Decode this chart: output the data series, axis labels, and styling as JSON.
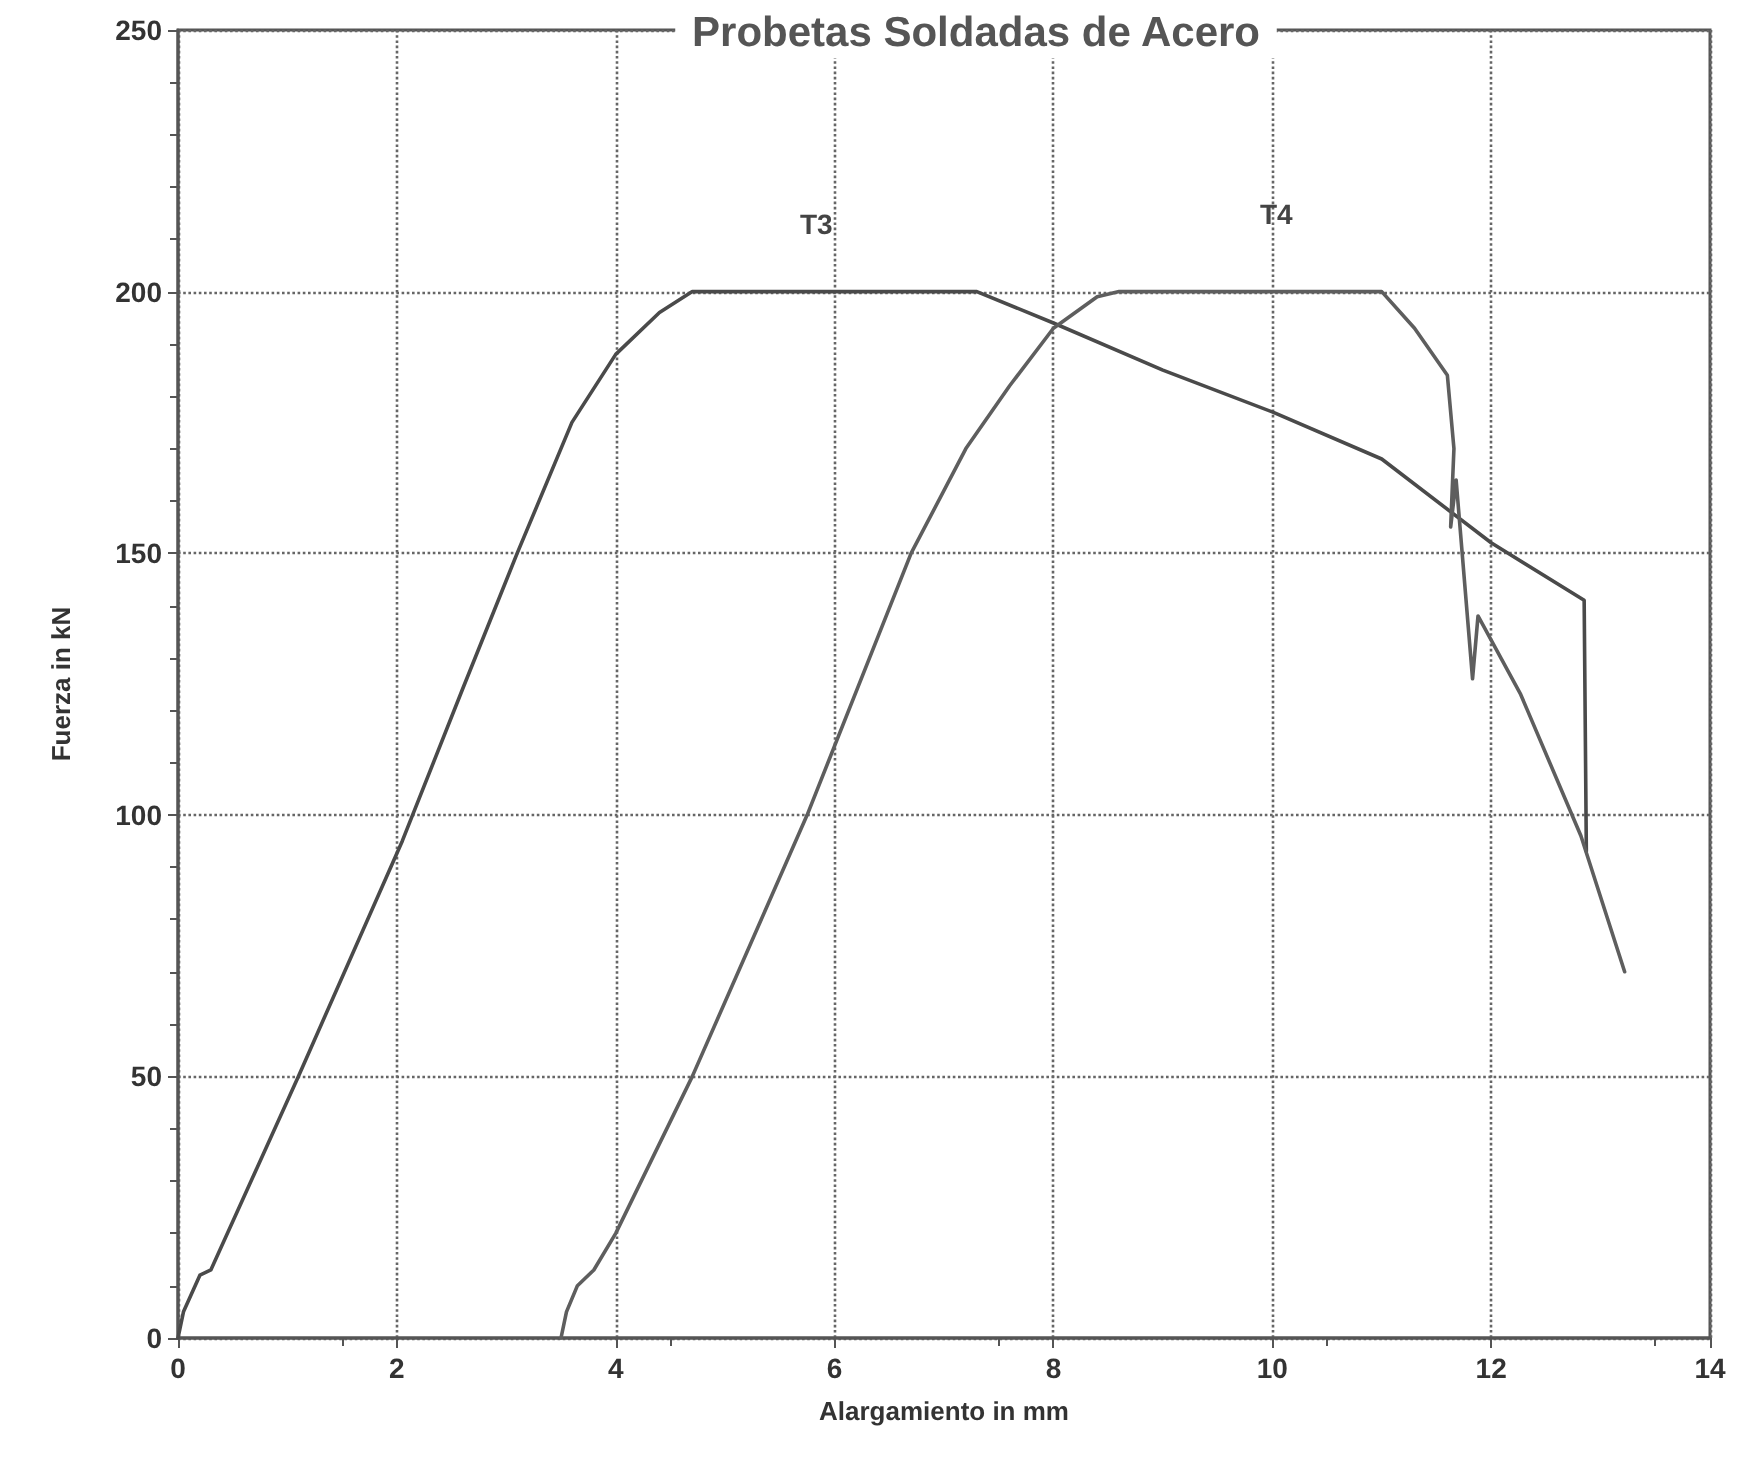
{
  "chart_data": {
    "type": "line",
    "title": "Probetas Soldadas de Acero",
    "xlabel": "Alargamiento in mm",
    "ylabel": "Fuerza in kN",
    "xlim": [
      0,
      14
    ],
    "xticks": [
      0,
      2,
      4,
      6,
      8,
      10,
      12,
      14
    ],
    "ylim": [
      0,
      250
    ],
    "yticks": [
      0,
      50,
      100,
      150,
      200,
      250
    ],
    "grid": true,
    "marker": "none",
    "line_style": "solid",
    "series": [
      {
        "color": "#4a4a4a",
        "x": [
          0,
          0.05,
          0.2,
          0.3,
          1.1,
          2.05,
          2.6,
          3.1,
          3.6,
          4.0,
          4.4,
          4.7,
          7.3,
          8,
          9,
          10,
          11,
          12,
          12.85,
          12.87
        ],
        "values": [
          0,
          5,
          12,
          13,
          50,
          95,
          124,
          150,
          175,
          188,
          196,
          200,
          200,
          194,
          185,
          177,
          168,
          152,
          141,
          93
        ]
      },
      {
        "color": "#5e5e5e",
        "x": [
          3.5,
          3.55,
          3.65,
          3.8,
          4.0,
          4.7,
          5.75,
          6.7,
          7.2,
          7.6,
          8.0,
          8.4,
          8.6,
          11.0,
          11.3,
          11.6,
          11.66,
          11.63,
          11.68,
          11.83,
          11.88,
          12.27,
          12.82,
          13.22
        ],
        "values": [
          0,
          5,
          10,
          13,
          20,
          50,
          100,
          150,
          170,
          182,
          193,
          199,
          200,
          200,
          193,
          184,
          170,
          155,
          164,
          126,
          138,
          123,
          96,
          70
        ]
      }
    ],
    "annotations": [
      "T3",
      "T4"
    ]
  }
}
